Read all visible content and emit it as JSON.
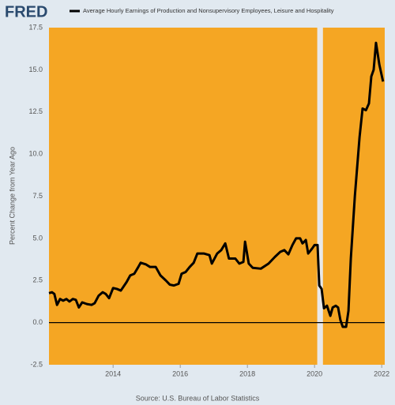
{
  "chart_data": {
    "type": "line",
    "brand": "FRED",
    "source": "Source: U.S. Bureau of Labor Statistics",
    "y_label": "Percent Change from Year Ago",
    "plot_color": "#f5a623",
    "shaded_periods": [
      [
        2020.08,
        2020.25
      ]
    ],
    "shade_color": "#e8e8e8",
    "xlim": [
      2012.09,
      2022.09
    ],
    "xticks": [
      2014,
      2016,
      2018,
      2020,
      2022
    ],
    "ylim": [
      -2.5,
      17.5
    ],
    "yticks": [
      -2.5,
      {
        "value": 0,
        "label": "0.0"
      },
      2.5,
      {
        "value": 5,
        "label": "5.0"
      },
      7.5,
      {
        "value": 10,
        "label": "10.0"
      },
      12.5,
      {
        "value": 15,
        "label": "15.0"
      },
      17.5
    ],
    "zero_line": true,
    "grid": false,
    "series": [
      {
        "name": "Average Hourly Earnings of Production and Nonsupervisory Employees, Leisure and Hospitality",
        "color": "#000000",
        "x": [
          2012.09,
          2012.18,
          2012.25,
          2012.33,
          2012.42,
          2012.51,
          2012.61,
          2012.7,
          2012.8,
          2012.89,
          2012.98,
          2013.08,
          2013.22,
          2013.36,
          2013.45,
          2013.57,
          2013.69,
          2013.78,
          2013.88,
          2014.0,
          2014.11,
          2014.23,
          2014.4,
          2014.51,
          2014.63,
          2014.75,
          2014.82,
          2014.98,
          2015.1,
          2015.27,
          2015.41,
          2015.57,
          2015.69,
          2015.81,
          2015.95,
          2016.04,
          2016.16,
          2016.28,
          2016.4,
          2016.51,
          2016.7,
          2016.87,
          2016.94,
          2017.1,
          2017.22,
          2017.34,
          2017.45,
          2017.64,
          2017.76,
          2017.88,
          2017.93,
          2018.04,
          2018.16,
          2018.4,
          2018.63,
          2018.82,
          2018.98,
          2019.1,
          2019.22,
          2019.34,
          2019.45,
          2019.57,
          2019.64,
          2019.74,
          2019.81,
          2019.93,
          2020.0,
          2020.09,
          2020.14,
          2020.21,
          2020.28,
          2020.37,
          2020.47,
          2020.54,
          2020.63,
          2020.7,
          2020.77,
          2020.84,
          2020.94,
          2021.01,
          2021.08,
          2021.2,
          2021.34,
          2021.43,
          2021.53,
          2021.62,
          2021.69,
          2021.76,
          2021.83,
          2021.93,
          2022.04
        ],
        "values": [
          1.75,
          1.8,
          1.7,
          1.05,
          1.4,
          1.3,
          1.4,
          1.25,
          1.4,
          1.35,
          0.9,
          1.2,
          1.1,
          1.05,
          1.15,
          1.6,
          1.8,
          1.7,
          1.45,
          2.05,
          2.0,
          1.9,
          2.4,
          2.8,
          2.9,
          3.3,
          3.55,
          3.45,
          3.3,
          3.3,
          2.8,
          2.5,
          2.25,
          2.2,
          2.3,
          2.9,
          3.0,
          3.3,
          3.55,
          4.1,
          4.1,
          4.0,
          3.5,
          4.1,
          4.3,
          4.7,
          3.8,
          3.8,
          3.5,
          3.6,
          4.8,
          3.5,
          3.25,
          3.2,
          3.5,
          3.9,
          4.2,
          4.3,
          4.05,
          4.6,
          5.0,
          5.0,
          4.7,
          4.9,
          4.1,
          4.4,
          4.6,
          4.6,
          2.2,
          2.0,
          0.85,
          1.0,
          0.4,
          0.9,
          1.0,
          0.9,
          0.15,
          -0.25,
          -0.25,
          0.7,
          3.8,
          7.5,
          11.0,
          12.7,
          12.6,
          13.0,
          14.6,
          15.0,
          16.6,
          15.3,
          14.3
        ]
      }
    ]
  }
}
